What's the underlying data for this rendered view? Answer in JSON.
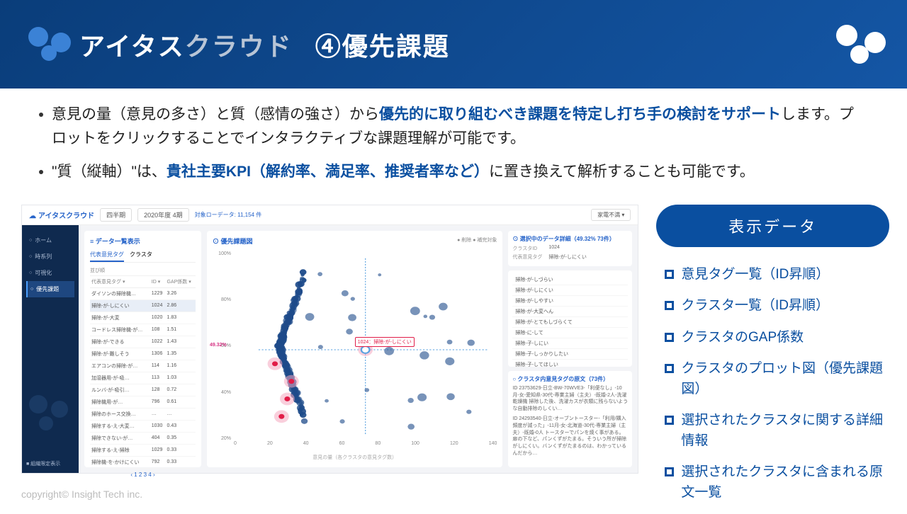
{
  "header": {
    "brand_white": "アイタス",
    "brand_grey": "クラウド",
    "title_suffix": "④優先課題"
  },
  "bullets": [
    {
      "pre": "意見の量（意見の多さ）と質（感情の強さ）から",
      "emph": "優先的に取り組むべき課題を特定し打ち手の検討をサポート",
      "post": "します。プロットをクリックすることでインタラクティブな課題理解が可能です。"
    },
    {
      "pre": "\"質（縦軸）\"は、",
      "emph": "貴社主要KPI（解約率、満足率、推奨者率など）",
      "post": "に置き換えて解析することも可能です。"
    }
  ],
  "screenshot": {
    "topbar": {
      "brand": "アイタスクラウド",
      "period_label": "四半期",
      "period_value": "2020年度 4期",
      "count_label": "対象ローデータ:",
      "count_value": "11,154 件",
      "right_dd": "家電不満 ▾"
    },
    "sidebar": {
      "items": [
        "ホーム",
        "時系列",
        "可視化",
        "優先課題"
      ],
      "org_toggle": "■ 組織限定表示"
    },
    "table_panel": {
      "title": "≡ データ一覧表示",
      "tab1": "代表意見タグ",
      "tab2": "クラスタ",
      "filter": "並び順",
      "col_tag": "代表意見タグ ▾",
      "col_id": "ID ▾",
      "col_gap": "GAP係数 ▾",
      "rows": [
        {
          "tag": "ダイソンの掃除機…",
          "id": "1229",
          "gap": "3.26"
        },
        {
          "tag": "掃除-が-しにくい",
          "id": "1024",
          "gap": "2.86",
          "sel": true
        },
        {
          "tag": "掃除-が-大変",
          "id": "1020",
          "gap": "1.83"
        },
        {
          "tag": "コードレス掃除機-が…",
          "id": "108",
          "gap": "1.51"
        },
        {
          "tag": "掃除-が-できる",
          "id": "1022",
          "gap": "1.43"
        },
        {
          "tag": "掃除-が-難しそう",
          "id": "1306",
          "gap": "1.35"
        },
        {
          "tag": "エアコンの掃除-が…",
          "id": "114",
          "gap": "1.16"
        },
        {
          "tag": "加湿器用-が-吸…",
          "id": "113",
          "gap": "1.03"
        },
        {
          "tag": "ルンバ-が-吸引…",
          "id": "128",
          "gap": "0.72"
        },
        {
          "tag": "掃除機用-が…",
          "id": "796",
          "gap": "0.61"
        },
        {
          "tag": "掃除のホース交換…",
          "id": "…",
          "gap": "…"
        },
        {
          "tag": "掃除する-え-大変…",
          "id": "1030",
          "gap": "0.43"
        },
        {
          "tag": "掃除できない-が…",
          "id": "404",
          "gap": "0.35"
        },
        {
          "tag": "掃除する-え-掃除",
          "id": "1029",
          "gap": "0.33"
        },
        {
          "tag": "掃除機-を-かけにくい",
          "id": "792",
          "gap": "0.33"
        }
      ],
      "pager": "‹ 1 2 3 4 ›"
    },
    "chart_panel": {
      "title": "⊙ 優先課題図",
      "legend": "● 削除 ● 補完対象",
      "y_ticks": [
        "100%",
        "80%",
        "60%",
        "40%",
        "20%"
      ],
      "x_ticks": [
        "0",
        "20",
        "40",
        "60",
        "80",
        "100",
        "120",
        "140"
      ],
      "mid_label": "49.32%",
      "x_label": "意見の量（各クラスタの意見タグ数）",
      "callout": "1024：掃除-が-しにくい"
    },
    "detail_panel": {
      "title1": "⊙ 選択中のデータ詳細（49.32% 73件）",
      "kv_cluster_k": "クラスタID",
      "kv_cluster_v": "1024",
      "kv_tag_k": "代表意見タグ",
      "kv_tag_v": "掃除-が-しにくい",
      "tags": [
        "掃除-が-しづらい",
        "掃除-が-しにくい",
        "掃除-が-しやすい",
        "掃除-が-大変へん",
        "掃除-が-とてもしづらくて",
        "掃除-に-して",
        "掃除-子-しにい",
        "掃除-子-しっかりしたい",
        "掃除-子-してほしい"
      ],
      "title2": "○ クラスタ内意見タグの原文（73件）",
      "orig1": "ID 23753629-日立-BW-70WVE3-「利便なし」-10月-女-愛知県-30代-専業主婦（主夫）-既婚-2人-洗濯乾燥機 掃除した後、洗濯カスが衣類に残らないような自動排除のしくい…",
      "orig2": "ID 24293540-日立-オーブントースター-「利用/購入頻度が減った」-11月-女-北海道-30代-専業主婦（主夫）-既婚-0人 トースターでパンを焼く事がある。扉の下など、パンくずがたまる。そういう所が掃除がしにくい。バンくずがたまるのは、わかっているんだから…"
    }
  },
  "right_panel": {
    "pill": "表示データ",
    "items": [
      "意見タグ一覧（ID昇順）",
      "クラスタ一覧（ID昇順）",
      "クラスタのGAP係数",
      "クラスタのプロット図（優先課題図）",
      "選択されたクラスタに関する詳細情報",
      "選択されたクラスタに含まれる原文一覧"
    ]
  },
  "copyright": "copyright© Insight Tech inc.",
  "scatter": {
    "series_color": "#1e4b8a",
    "highlight_color": "#e11d48",
    "highlight_halo": "#f4a8c0",
    "crosshair_color": "#5aa2e0"
  }
}
